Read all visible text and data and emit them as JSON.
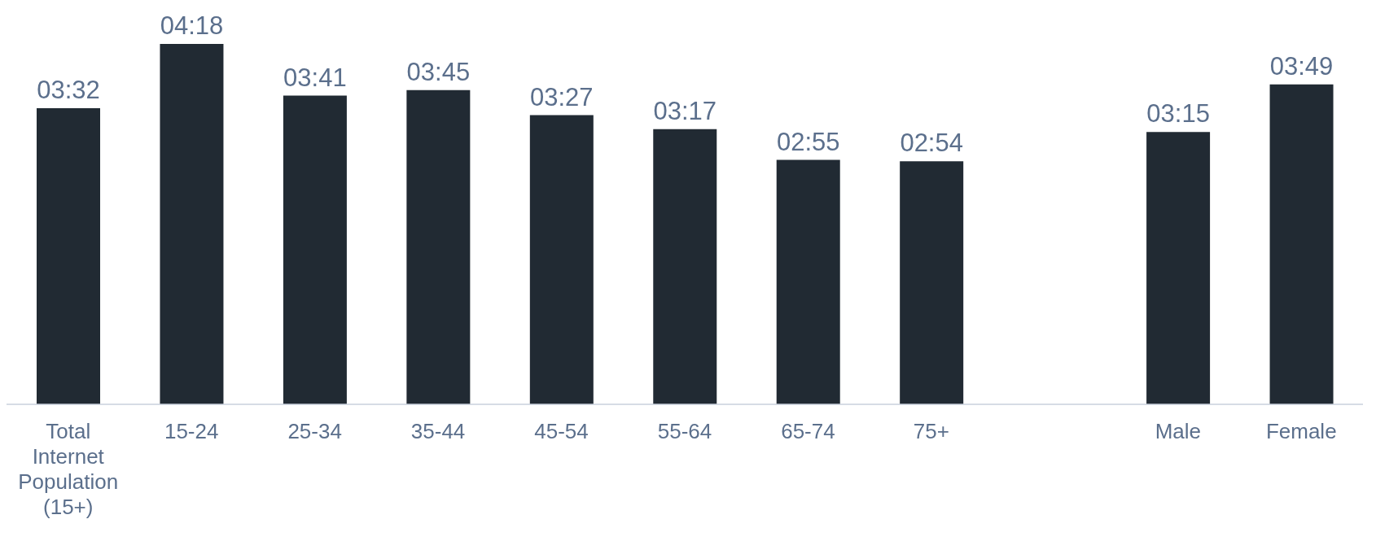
{
  "chart_data": {
    "type": "bar",
    "categories": [
      "Total Internet Population (15+)",
      "15-24",
      "25-34",
      "35-44",
      "45-54",
      "55-64",
      "65-74",
      "75+",
      null,
      "Male",
      "Female"
    ],
    "values": [
      212,
      258,
      221,
      225,
      207,
      197,
      175,
      174,
      null,
      195,
      229
    ],
    "value_labels": [
      "03:32",
      "04:18",
      "03:41",
      "03:45",
      "03:27",
      "03:17",
      "02:55",
      "02:54",
      null,
      "03:15",
      "03:49"
    ],
    "color": "#212a33",
    "grid": false,
    "legend": false
  }
}
